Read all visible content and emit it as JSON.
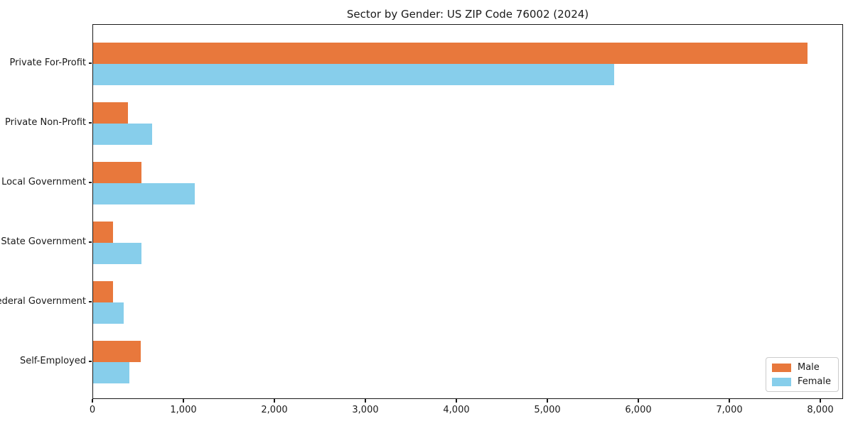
{
  "chart_data": {
    "type": "bar",
    "orientation": "horizontal",
    "title": "Sector by Gender: US ZIP Code 76002 (2024)",
    "categories": [
      "Private For-Profit",
      "Private Non-Profit",
      "Local Government",
      "State Government",
      "Federal Government",
      "Self-Employed"
    ],
    "series": [
      {
        "name": "Male",
        "color": "#e8783c",
        "values": [
          7855,
          380,
          530,
          215,
          220,
          520
        ]
      },
      {
        "name": "Female",
        "color": "#87ceeb",
        "values": [
          5725,
          650,
          1115,
          530,
          335,
          400
        ]
      }
    ],
    "xlabel": "",
    "ylabel": "",
    "xlim": [
      0,
      8250
    ],
    "xticks": {
      "values": [
        0,
        1000,
        2000,
        3000,
        4000,
        5000,
        6000,
        7000,
        8000
      ],
      "labels": [
        "0",
        "1,000",
        "2,000",
        "3,000",
        "4,000",
        "5,000",
        "6,000",
        "7,000",
        "8,000"
      ]
    },
    "grid": false,
    "legend_position": "lower right",
    "axis_color": "#1a1a1a"
  }
}
